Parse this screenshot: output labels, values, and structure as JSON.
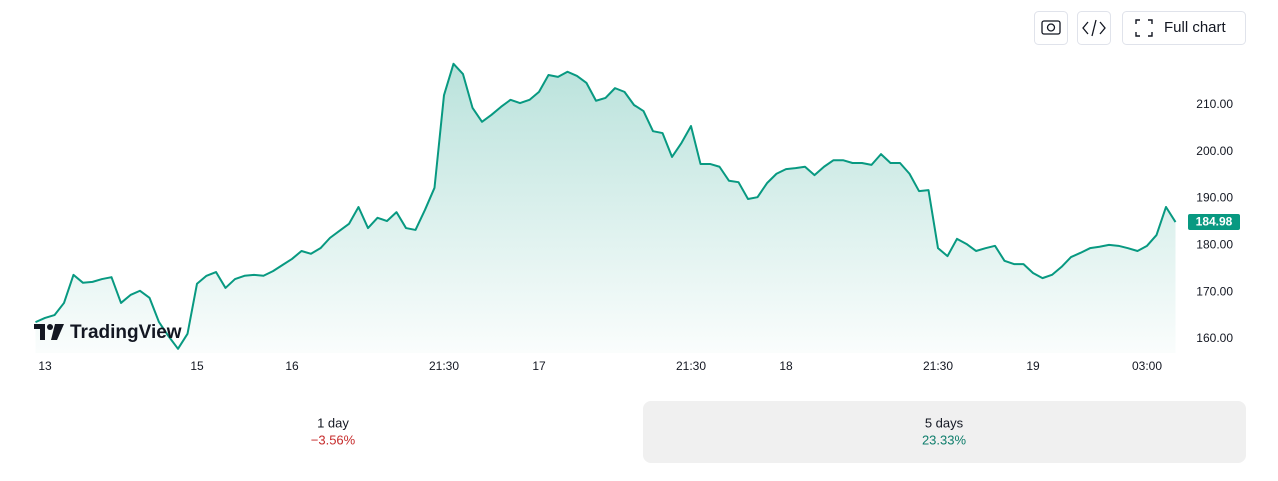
{
  "chart_data": {
    "type": "line",
    "brand": "TradingView",
    "categories": [
      null,
      "13",
      null,
      null,
      null,
      null,
      null,
      null,
      null,
      null,
      null,
      null,
      null,
      null,
      null,
      null,
      null,
      "15",
      null,
      null,
      null,
      null,
      null,
      null,
      null,
      null,
      null,
      "16",
      null,
      null,
      null,
      null,
      null,
      null,
      null,
      null,
      null,
      null,
      null,
      null,
      null,
      null,
      null,
      "21:30",
      null,
      null,
      null,
      null,
      null,
      null,
      null,
      null,
      null,
      "17",
      null,
      null,
      null,
      null,
      null,
      null,
      null,
      null,
      null,
      null,
      null,
      null,
      null,
      null,
      null,
      "21:30",
      null,
      null,
      null,
      null,
      null,
      null,
      null,
      null,
      null,
      "18",
      null,
      null,
      null,
      null,
      null,
      null,
      null,
      null,
      null,
      null,
      null,
      null,
      null,
      null,
      null,
      "21:30",
      null,
      null,
      null,
      null,
      null,
      null,
      null,
      null,
      null,
      "19",
      null,
      null,
      null,
      null,
      null,
      null,
      null,
      null,
      null,
      null,
      null,
      "03:00",
      null,
      null,
      null
    ],
    "values": [
      163.6,
      164.5,
      165.1,
      167.7,
      173.7,
      172.0,
      172.2,
      172.8,
      173.2,
      167.7,
      169.4,
      170.3,
      168.8,
      163.6,
      160.6,
      157.9,
      161.1,
      171.8,
      173.5,
      174.3,
      170.9,
      172.8,
      173.5,
      173.7,
      173.5,
      174.5,
      175.8,
      177.1,
      178.8,
      178.2,
      179.4,
      181.6,
      183.1,
      184.6,
      188.2,
      183.7,
      185.9,
      185.2,
      187.1,
      183.7,
      183.3,
      187.6,
      192.3,
      212.1,
      218.8,
      216.6,
      209.4,
      206.4,
      207.9,
      209.6,
      211.1,
      210.4,
      211.1,
      212.8,
      216.4,
      216.0,
      217.1,
      216.2,
      214.7,
      210.9,
      211.5,
      213.6,
      212.8,
      210.0,
      208.7,
      204.4,
      204.0,
      198.9,
      201.9,
      205.5,
      197.4,
      197.4,
      196.8,
      193.8,
      193.5,
      189.9,
      190.3,
      193.3,
      195.3,
      196.3,
      196.5,
      196.8,
      195.0,
      196.8,
      198.2,
      198.2,
      197.6,
      197.6,
      197.2,
      199.5,
      197.6,
      197.6,
      195.3,
      191.6,
      191.8,
      179.4,
      177.7,
      181.4,
      180.3,
      178.8,
      179.4,
      179.9,
      176.7,
      176.0,
      176.0,
      174.1,
      173.0,
      173.7,
      175.4,
      177.5,
      178.4,
      179.4,
      179.7,
      180.1,
      179.9,
      179.4,
      178.8,
      179.9,
      182.2,
      188.2,
      184.98
    ],
    "color": "#089981",
    "ylim": [
      157,
      221
    ],
    "yticks": [
      {
        "value": 160,
        "label": "160.00"
      },
      {
        "value": 170,
        "label": "170.00"
      },
      {
        "value": 180,
        "label": "180.00"
      },
      {
        "value": 190,
        "label": "190.00"
      },
      {
        "value": 200,
        "label": "200.00"
      },
      {
        "value": 210,
        "label": "210.00"
      }
    ]
  },
  "toolbar": {
    "full_chart": "Full chart"
  },
  "performance": [
    {
      "period": "1 day",
      "change": "−3.56%"
    },
    {
      "period": "5 days",
      "change": "23.33%"
    }
  ]
}
